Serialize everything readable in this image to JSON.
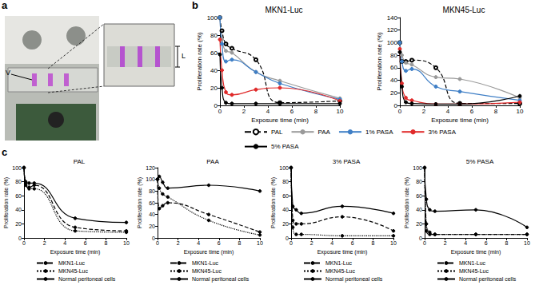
{
  "figure": {
    "panel_labels": [
      "a",
      "b",
      "c"
    ],
    "photo_labels": [
      "V",
      "L"
    ]
  },
  "chart_data": [
    {
      "type": "line",
      "title": "MKN1-Luc",
      "x_label": "Exposure time (min)",
      "y_label": "Proliferation rate (%)",
      "x": [
        0,
        0.17,
        0.5,
        1,
        3,
        5,
        10
      ],
      "xlim": [
        0,
        10
      ],
      "xticks": [
        0,
        2,
        4,
        6,
        8,
        10
      ],
      "ylim": [
        0,
        100
      ],
      "yticks": [
        0,
        20,
        40,
        60,
        80,
        100
      ],
      "grid": false,
      "legend": "bottom",
      "series": [
        {
          "name": "PAL",
          "color": "#000000",
          "line_style": "dashed",
          "marker": "emptyCircle",
          "values": [
            100,
            85,
            70,
            65,
            52,
            3,
            5
          ]
        },
        {
          "name": "PAA",
          "color": "#9a9a9a",
          "line_style": "solid",
          "marker": "circle",
          "values": [
            100,
            75,
            62,
            60,
            38,
            28,
            8
          ]
        },
        {
          "name": "1% PASA",
          "color": "#3f7fc6",
          "line_style": "solid",
          "marker": "circle",
          "values": [
            100,
            70,
            50,
            52,
            38,
            25,
            7
          ]
        },
        {
          "name": "3% PASA",
          "color": "#e02a2a",
          "line_style": "solid",
          "marker": "circle",
          "values": [
            75,
            40,
            15,
            12,
            18,
            20,
            5
          ]
        },
        {
          "name": "5% PASA",
          "color": "#000000",
          "line_style": "solid",
          "marker": "circle",
          "values": [
            58,
            20,
            3,
            2,
            2,
            2,
            2
          ]
        }
      ]
    },
    {
      "type": "line",
      "title": "MKN45-Luc",
      "x_label": "Exposure time (min)",
      "y_label": "Proliferation rate (%)",
      "x": [
        0,
        0.17,
        0.5,
        1,
        3,
        5,
        10
      ],
      "xlim": [
        0,
        10
      ],
      "xticks": [
        0,
        2,
        4,
        6,
        8,
        10
      ],
      "ylim": [
        0,
        140
      ],
      "yticks": [
        0,
        20,
        40,
        60,
        80,
        100,
        120,
        140
      ],
      "grid": false,
      "series": [
        {
          "name": "PAL",
          "color": "#000000",
          "line_style": "dashed",
          "marker": "emptyCircle",
          "values": [
            100,
            70,
            70,
            72,
            60,
            3,
            3
          ]
        },
        {
          "name": "PAA",
          "color": "#9a9a9a",
          "line_style": "solid",
          "marker": "circle",
          "values": [
            100,
            80,
            68,
            65,
            45,
            42,
            12
          ]
        },
        {
          "name": "1% PASA",
          "color": "#3f7fc6",
          "line_style": "solid",
          "marker": "circle",
          "values": [
            100,
            70,
            55,
            58,
            30,
            22,
            8
          ]
        },
        {
          "name": "3% PASA",
          "color": "#e02a2a",
          "line_style": "solid",
          "marker": "circle",
          "values": [
            90,
            35,
            12,
            8,
            2,
            2,
            5
          ]
        },
        {
          "name": "5% PASA",
          "color": "#000000",
          "line_style": "solid",
          "marker": "circle",
          "values": [
            85,
            30,
            5,
            3,
            2,
            2,
            15
          ]
        }
      ]
    },
    {
      "type": "line",
      "title": "PAL",
      "x_label": "Exposure time (min)",
      "y_label": "Proliferation rate (%)",
      "x": [
        0,
        0.17,
        0.5,
        1,
        5,
        10
      ],
      "xlim": [
        0,
        10
      ],
      "xticks": [
        0,
        2,
        4,
        6,
        8,
        10
      ],
      "ylim": [
        0,
        100
      ],
      "yticks": [
        0,
        20,
        40,
        60,
        80,
        100
      ],
      "grid": false,
      "legend": "bottom",
      "series": [
        {
          "name": "MKN1-Luc",
          "color": "#000000",
          "line_style": "dashed",
          "marker": "circle",
          "values": [
            100,
            75,
            72,
            75,
            15,
            10
          ]
        },
        {
          "name": "MKN45-Luc",
          "color": "#000000",
          "line_style": "dotted",
          "marker": "circle",
          "values": [
            100,
            78,
            70,
            70,
            10,
            8
          ]
        },
        {
          "name": "Normal peritoneal cells",
          "color": "#000000",
          "line_style": "solid",
          "marker": "circle",
          "values": [
            100,
            80,
            78,
            78,
            28,
            22
          ]
        }
      ]
    },
    {
      "type": "line",
      "title": "PAA",
      "x_label": "Exposure time (min)",
      "y_label": "Proliferation rate (%)",
      "x": [
        0,
        0.17,
        0.5,
        1,
        5,
        10
      ],
      "xlim": [
        0,
        10
      ],
      "xticks": [
        0,
        2,
        4,
        6,
        8,
        10
      ],
      "ylim": [
        0,
        120
      ],
      "yticks": [
        0,
        20,
        40,
        60,
        80,
        100,
        120
      ],
      "grid": false,
      "legend": "bottom",
      "series": [
        {
          "name": "MKN1-Luc",
          "color": "#000000",
          "line_style": "dashed",
          "marker": "circle",
          "values": [
            100,
            50,
            55,
            60,
            40,
            10
          ]
        },
        {
          "name": "MKN45-Luc",
          "color": "#000000",
          "line_style": "dotted",
          "marker": "circle",
          "values": [
            100,
            85,
            75,
            70,
            30,
            5
          ]
        },
        {
          "name": "Normal peritoneal cells",
          "color": "#000000",
          "line_style": "solid",
          "marker": "circle",
          "values": [
            100,
            105,
            95,
            85,
            90,
            80
          ]
        }
      ]
    },
    {
      "type": "line",
      "title": "3% PASA",
      "x_label": "Exposure time (min)",
      "y_label": "Proliferation rate (%)",
      "x": [
        0,
        0.17,
        0.5,
        1,
        5,
        10
      ],
      "xlim": [
        0,
        10
      ],
      "xticks": [
        0,
        2,
        4,
        6,
        8,
        10
      ],
      "ylim": [
        0,
        100
      ],
      "yticks": [
        0,
        20,
        40,
        60,
        80,
        100
      ],
      "grid": false,
      "legend": "bottom",
      "series": [
        {
          "name": "MKN1-Luc",
          "color": "#000000",
          "line_style": "dashed",
          "marker": "circle",
          "values": [
            100,
            25,
            20,
            20,
            30,
            10
          ]
        },
        {
          "name": "MKN45-Luc",
          "color": "#000000",
          "line_style": "dotted",
          "marker": "circle",
          "values": [
            100,
            15,
            5,
            5,
            3,
            3
          ]
        },
        {
          "name": "Normal peritoneal cells",
          "color": "#000000",
          "line_style": "solid",
          "marker": "circle",
          "values": [
            100,
            45,
            40,
            35,
            45,
            35
          ]
        }
      ]
    },
    {
      "type": "line",
      "title": "5% PASA",
      "x_label": "Exposure time (min)",
      "y_label": "Proliferation rate (%)",
      "x": [
        0,
        0.17,
        0.5,
        1,
        5,
        10
      ],
      "xlim": [
        0,
        10
      ],
      "xticks": [
        0,
        2,
        4,
        6,
        8,
        10
      ],
      "ylim": [
        0,
        100
      ],
      "yticks": [
        0,
        20,
        40,
        60,
        80,
        100
      ],
      "grid": false,
      "legend": "bottom",
      "series": [
        {
          "name": "MKN1-Luc",
          "color": "#000000",
          "line_style": "dashed",
          "marker": "circle",
          "values": [
            100,
            10,
            5,
            5,
            5,
            5
          ]
        },
        {
          "name": "MKN45-Luc",
          "color": "#000000",
          "line_style": "dotted",
          "marker": "circle",
          "values": [
            100,
            20,
            8,
            5,
            5,
            5
          ]
        },
        {
          "name": "Normal peritoneal cells",
          "color": "#000000",
          "line_style": "solid",
          "marker": "circle",
          "values": [
            100,
            55,
            40,
            38,
            40,
            15
          ]
        }
      ]
    }
  ]
}
